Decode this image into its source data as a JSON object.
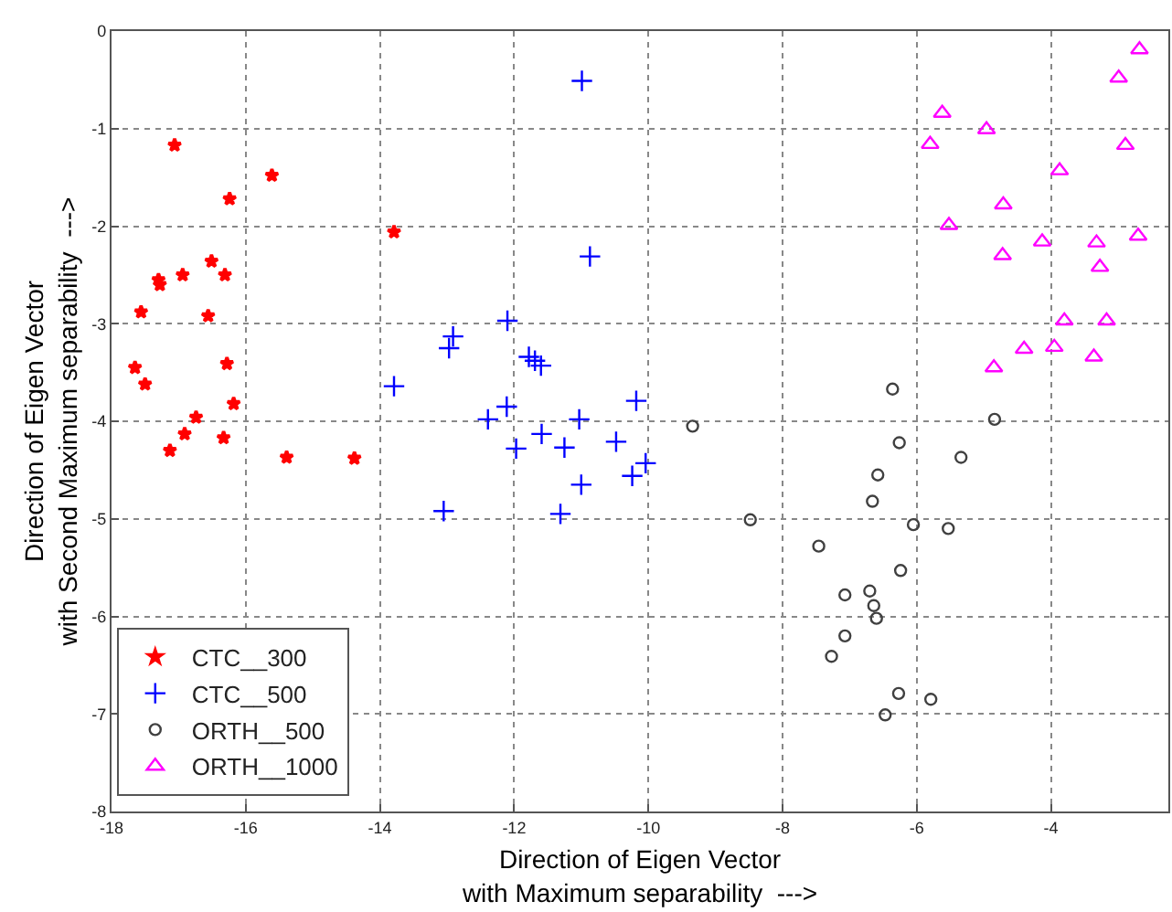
{
  "chart_data": {
    "type": "scatter",
    "xlabel": "Direction of Eigen Vector\nwith Maximum separability  --->",
    "ylabel": "Direction of Eigen Vector\nwith Second Maximum separability  --->",
    "xlim": [
      -18,
      -2.25
    ],
    "xticks": [
      -18,
      -16,
      -14,
      -12,
      -10,
      -8,
      -6,
      -4
    ],
    "ylim": [
      -8,
      0
    ],
    "yticks": [
      -8,
      -7,
      -6,
      -5,
      -4,
      -3,
      -2,
      -1,
      0
    ],
    "grid": true,
    "legend": "bottom left",
    "series": [
      {
        "name": "CTC__300",
        "color": "#ff0000",
        "marker": "star",
        "x": [
          -17.06,
          -15.61,
          -16.24,
          -13.79,
          -16.51,
          -16.94,
          -16.31,
          -17.3,
          -17.28,
          -17.56,
          -16.56,
          -17.65,
          -16.28,
          -17.5,
          -16.18,
          -16.74,
          -16.91,
          -16.33,
          -17.13,
          -15.39,
          -14.38
        ],
        "values": [
          -1.17,
          -1.48,
          -1.72,
          -2.06,
          -2.36,
          -2.5,
          -2.5,
          -2.55,
          -2.6,
          -2.88,
          -2.92,
          -3.45,
          -3.41,
          -3.62,
          -3.82,
          -3.96,
          -4.13,
          -4.17,
          -4.3,
          -4.37,
          -4.38
        ]
      },
      {
        "name": "CTC__500",
        "color": "#0000ff",
        "marker": "cross",
        "x": [
          -10.99,
          -10.87,
          -12.1,
          -12.91,
          -12.97,
          -11.78,
          -11.69,
          -11.6,
          -13.79,
          -10.18,
          -12.11,
          -12.39,
          -11.03,
          -11.59,
          -10.48,
          -11.97,
          -11.25,
          -10.04,
          -10.24,
          -11.0,
          -13.05,
          -11.31
        ],
        "values": [
          -0.51,
          -2.31,
          -2.97,
          -3.13,
          -3.25,
          -3.34,
          -3.38,
          -3.43,
          -3.64,
          -3.79,
          -3.85,
          -3.98,
          -3.98,
          -4.13,
          -4.21,
          -4.28,
          -4.27,
          -4.43,
          -4.56,
          -4.65,
          -4.92,
          -4.95
        ]
      },
      {
        "name": "ORTH__500",
        "color": "#404040",
        "marker": "circle",
        "x": [
          -9.34,
          -8.48,
          -6.36,
          -4.84,
          -6.26,
          -5.34,
          -6.58,
          -6.66,
          -6.05,
          -5.53,
          -7.46,
          -6.24,
          -7.07,
          -6.7,
          -6.64,
          -6.6,
          -7.07,
          -7.27,
          -6.27,
          -5.79,
          -6.47
        ],
        "values": [
          -4.05,
          -5.01,
          -3.67,
          -3.98,
          -4.22,
          -4.37,
          -4.55,
          -4.82,
          -5.06,
          -5.1,
          -5.28,
          -5.53,
          -5.78,
          -5.74,
          -5.89,
          -6.02,
          -6.2,
          -6.41,
          -6.79,
          -6.85,
          -7.01
        ]
      },
      {
        "name": "ORTH__1000",
        "color": "#ff00ff",
        "marker": "triangle",
        "x": [
          -2.68,
          -2.99,
          -5.62,
          -4.96,
          -5.8,
          -2.89,
          -3.87,
          -4.71,
          -5.52,
          -4.13,
          -3.32,
          -2.7,
          -4.72,
          -3.27,
          -3.8,
          -3.17,
          -4.4,
          -3.95,
          -3.36,
          -4.85
        ],
        "values": [
          -0.19,
          -0.48,
          -0.84,
          -1.01,
          -1.16,
          -1.17,
          -1.43,
          -1.78,
          -1.99,
          -2.16,
          -2.17,
          -2.1,
          -2.3,
          -2.42,
          -2.97,
          -2.97,
          -3.26,
          -3.24,
          -3.34,
          -3.45
        ]
      }
    ]
  }
}
